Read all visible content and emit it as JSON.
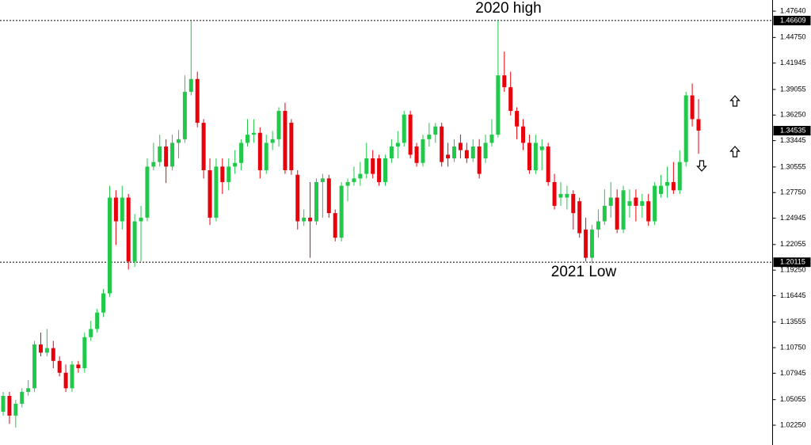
{
  "chart_data": {
    "type": "candlestick",
    "up_color": "#22c84a",
    "down_color": "#e8000b",
    "ylim": [
      1.0008,
      1.4886
    ],
    "yticks": [
      {
        "value": 1.4764,
        "label": "1.47640"
      },
      {
        "value": 1.4475,
        "label": "1.44750"
      },
      1.41945,
      1.39055,
      {
        "value": 1.3625,
        "label": "1.36250"
      },
      1.33445,
      1.30555,
      {
        "value": 1.2775,
        "label": "1.27750"
      },
      1.24945,
      1.22055,
      {
        "value": 1.1925,
        "label": "1.19250"
      },
      1.16445,
      1.13555,
      {
        "value": 1.1075,
        "label": "1.10750"
      },
      1.07945,
      1.05055,
      {
        "value": 1.0225,
        "label": "1.02250"
      }
    ],
    "hlines": [
      {
        "value": 1.46609,
        "annotation": "2020 high"
      },
      {
        "value": 1.20115,
        "annotation": "2021 Low"
      }
    ],
    "price_tags": [
      1.46609,
      1.34535,
      1.20115
    ],
    "open": [
      1.0373,
      1.0546,
      1.033,
      1.046,
      1.059,
      1.063,
      1.111,
      1.102,
      1.107,
      1.093,
      1.08,
      1.063,
      1.089,
      1.085,
      1.119,
      1.128,
      1.146,
      1.167,
      1.272,
      1.246,
      1.272,
      1.202,
      1.246,
      1.25,
      1.306,
      1.311,
      1.328,
      1.306,
      1.332,
      1.336,
      1.388,
      1.402,
      1.354,
      1.302,
      1.25,
      1.306,
      1.289,
      1.306,
      1.31,
      1.332,
      1.341,
      1.343,
      1.302,
      1.332,
      1.336,
      1.367,
      1.354,
      1.297,
      1.246,
      1.25,
      1.246,
      1.289,
      1.293,
      1.255,
      1.228,
      1.285,
      1.289,
      1.293,
      1.298,
      1.315,
      1.315,
      1.289,
      1.315,
      1.328,
      1.332,
      1.363,
      1.328,
      1.31,
      1.336,
      1.341,
      1.35,
      1.319,
      1.315,
      1.332,
      1.324,
      1.315,
      1.328,
      1.315,
      1.332,
      1.341,
      1.406,
      1.393,
      1.367,
      1.35,
      1.332,
      1.302,
      1.324,
      1.328,
      1.289,
      1.272,
      1.272,
      1.276,
      1.268,
      1.237,
      1.206,
      1.237,
      1.246,
      1.263,
      1.272,
      1.237,
      1.263,
      1.272,
      1.263,
      1.268,
      1.246,
      1.276,
      1.285,
      1.289,
      1.28,
      1.311,
      1.384,
      1.358
    ],
    "high": [
      1.059,
      1.059,
      1.05,
      1.063,
      1.072,
      1.115,
      1.124,
      1.128,
      1.115,
      1.098,
      1.089,
      1.093,
      1.093,
      1.124,
      1.137,
      1.15,
      1.172,
      1.285,
      1.28,
      1.285,
      1.276,
      1.254,
      1.263,
      1.315,
      1.332,
      1.341,
      1.336,
      1.341,
      1.346,
      1.406,
      1.466,
      1.41,
      1.358,
      1.315,
      1.315,
      1.315,
      1.315,
      1.324,
      1.336,
      1.358,
      1.358,
      1.349,
      1.341,
      1.345,
      1.371,
      1.376,
      1.358,
      1.302,
      1.259,
      1.289,
      1.293,
      1.298,
      1.297,
      1.259,
      1.289,
      1.293,
      1.306,
      1.311,
      1.332,
      1.324,
      1.319,
      1.319,
      1.336,
      1.345,
      1.367,
      1.367,
      1.332,
      1.341,
      1.354,
      1.354,
      1.354,
      1.332,
      1.336,
      1.341,
      1.332,
      1.336,
      1.336,
      1.341,
      1.358,
      1.466,
      1.432,
      1.41,
      1.371,
      1.358,
      1.341,
      1.341,
      1.336,
      1.332,
      1.298,
      1.289,
      1.285,
      1.28,
      1.272,
      1.25,
      1.242,
      1.259,
      1.281,
      1.289,
      1.281,
      1.285,
      1.281,
      1.281,
      1.276,
      1.276,
      1.289,
      1.297,
      1.306,
      1.311,
      1.324,
      1.388,
      1.397,
      1.38
    ],
    "low": [
      1.033,
      1.024,
      1.02,
      1.042,
      1.055,
      1.059,
      1.098,
      1.098,
      1.085,
      1.076,
      1.059,
      1.059,
      1.08,
      1.08,
      1.115,
      1.124,
      1.141,
      1.163,
      1.22,
      1.237,
      1.193,
      1.196,
      1.202,
      1.246,
      1.302,
      1.306,
      1.288,
      1.302,
      1.315,
      1.332,
      1.384,
      1.349,
      1.293,
      1.242,
      1.246,
      1.276,
      1.28,
      1.298,
      1.302,
      1.328,
      1.332,
      1.293,
      1.298,
      1.324,
      1.328,
      1.298,
      1.297,
      1.237,
      1.241,
      1.206,
      1.242,
      1.25,
      1.25,
      1.224,
      1.224,
      1.268,
      1.285,
      1.285,
      1.293,
      1.293,
      1.285,
      1.285,
      1.31,
      1.315,
      1.328,
      1.315,
      1.306,
      1.306,
      1.328,
      1.332,
      1.306,
      1.306,
      1.311,
      1.315,
      1.31,
      1.311,
      1.293,
      1.31,
      1.328,
      1.338,
      1.388,
      1.362,
      1.336,
      1.324,
      1.298,
      1.298,
      1.302,
      1.285,
      1.259,
      1.263,
      1.259,
      1.237,
      1.228,
      1.202,
      1.2,
      1.228,
      1.242,
      1.25,
      1.233,
      1.233,
      1.25,
      1.246,
      1.25,
      1.241,
      1.242,
      1.272,
      1.272,
      1.276,
      1.276,
      1.306,
      1.35,
      1.32
    ],
    "close": [
      1.0546,
      1.033,
      1.046,
      1.059,
      1.063,
      1.111,
      1.102,
      1.107,
      1.093,
      1.08,
      1.063,
      1.089,
      1.085,
      1.119,
      1.128,
      1.146,
      1.167,
      1.272,
      1.246,
      1.272,
      1.202,
      1.246,
      1.25,
      1.306,
      1.311,
      1.328,
      1.306,
      1.332,
      1.336,
      1.388,
      1.402,
      1.354,
      1.302,
      1.25,
      1.306,
      1.289,
      1.306,
      1.31,
      1.332,
      1.341,
      1.343,
      1.302,
      1.332,
      1.336,
      1.367,
      1.302,
      1.302,
      1.246,
      1.25,
      1.246,
      1.289,
      1.293,
      1.255,
      1.228,
      1.285,
      1.289,
      1.293,
      1.298,
      1.315,
      1.298,
      1.289,
      1.315,
      1.328,
      1.332,
      1.363,
      1.319,
      1.31,
      1.336,
      1.341,
      1.35,
      1.311,
      1.315,
      1.328,
      1.324,
      1.315,
      1.328,
      1.298,
      1.332,
      1.341,
      1.406,
      1.393,
      1.367,
      1.35,
      1.332,
      1.302,
      1.332,
      1.328,
      1.289,
      1.263,
      1.276,
      1.276,
      1.255,
      1.233,
      1.206,
      1.237,
      1.246,
      1.263,
      1.272,
      1.237,
      1.28,
      1.268,
      1.263,
      1.268,
      1.246,
      1.285,
      1.285,
      1.289,
      1.28,
      1.311,
      1.384,
      1.358,
      1.3454
    ]
  }
}
